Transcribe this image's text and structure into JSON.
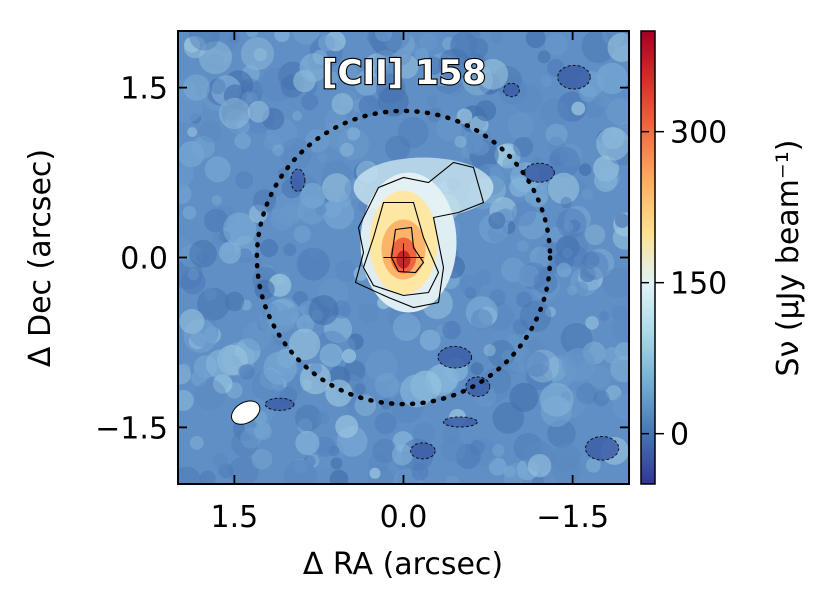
{
  "chart_data": {
    "type": "heatmap",
    "title": "[CII] 158",
    "xlabel": "Δ RA (arcsec)",
    "ylabel": "Δ Dec (arcsec)",
    "xlim": [
      2.0,
      -2.0
    ],
    "ylim": [
      -2.0,
      2.0
    ],
    "x_ticks": [
      1.5,
      0.0,
      -1.5
    ],
    "x_tick_labels": [
      "1.5",
      "0.0",
      "−1.5"
    ],
    "y_ticks": [
      1.5,
      0.0,
      -1.5
    ],
    "y_tick_labels": [
      "1.5",
      "0.0",
      "−1.5"
    ],
    "colorbar": {
      "label": "Sν (μJy beam⁻¹)",
      "range": [
        -50,
        400
      ],
      "ticks": [
        0,
        150,
        300
      ],
      "tick_labels": [
        "0",
        "150",
        "300"
      ],
      "colormap": "RdYlBu_r",
      "colors": [
        "#313695",
        "#4575b4",
        "#74add1",
        "#abd9e9",
        "#e0f3f8",
        "#fee090",
        "#fdae61",
        "#f46d43",
        "#d73027",
        "#a50026"
      ]
    },
    "source": {
      "peak_position": [
        0.0,
        0.0
      ],
      "peak_value": 400
    },
    "aperture_circle": {
      "center": [
        0.0,
        0.0
      ],
      "radius": 1.3,
      "style": "dotted"
    },
    "beam": {
      "center": [
        1.4,
        -1.37
      ],
      "major": 0.27,
      "minor": 0.18,
      "pa_deg": 30
    },
    "grid": false
  }
}
